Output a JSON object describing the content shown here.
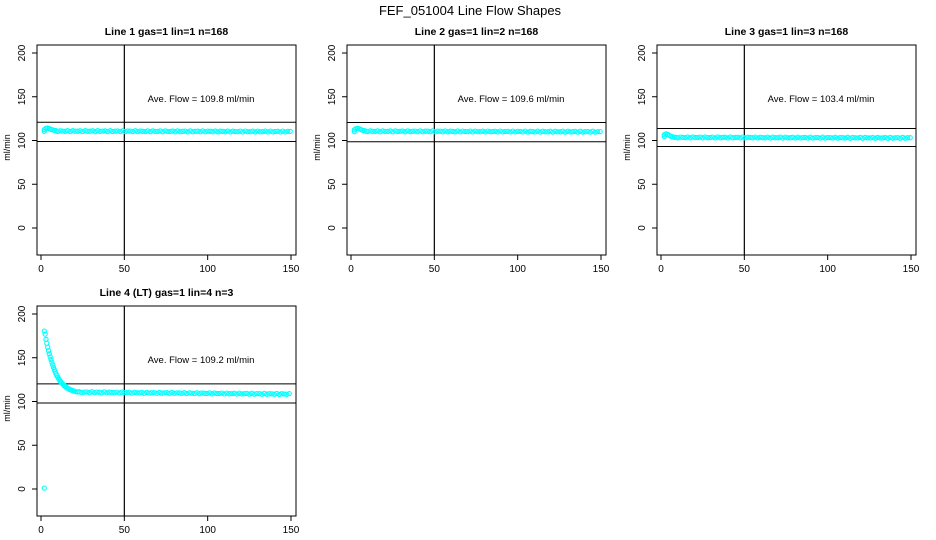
{
  "title": "FEF_051004  Line Flow Shapes",
  "colors": {
    "points": "#00ffff",
    "axis": "#000000",
    "background": "#ffffff",
    "text": "#000000"
  },
  "axes": {
    "x_ticks": [
      0,
      50,
      100,
      150
    ],
    "y_ticks": [
      0,
      50,
      100,
      150,
      200
    ],
    "y_label": "ml/min",
    "x_range": [
      0,
      150
    ],
    "y_range": [
      0,
      200
    ],
    "grid": false
  },
  "chart_data": [
    {
      "type": "scatter",
      "title": "Line 1 gas=1 lin=1 n=168",
      "line": 1,
      "gas": 1,
      "lin": 1,
      "n": 168,
      "ave_flow": "109.8",
      "annotation": "Ave. Flow =  109.8  ml/min",
      "ref_line_upper": 120.8,
      "ref_line_lower": 98.8,
      "ref_line_vertical_x": 50,
      "head_points": [
        [
          2,
          110.5
        ],
        [
          2,
          112.5
        ],
        [
          3,
          113.8
        ],
        [
          4,
          114.3
        ],
        [
          5,
          113.5
        ],
        [
          6,
          112.7
        ],
        [
          7,
          112.1
        ],
        [
          8,
          111.6
        ],
        [
          9,
          111.2
        ]
      ],
      "steady": {
        "x_start": 10,
        "x_end": 150,
        "x_step": 1.5,
        "y_start": 110.8,
        "y_end": 110.2
      },
      "outliers": []
    },
    {
      "type": "scatter",
      "title": "Line 2 gas=1 lin=2 n=168",
      "line": 2,
      "gas": 1,
      "lin": 2,
      "n": 168,
      "ave_flow": "109.6",
      "annotation": "Ave. Flow =  109.6  ml/min",
      "ref_line_upper": 120.6,
      "ref_line_lower": 98.6,
      "ref_line_vertical_x": 50,
      "head_points": [
        [
          2,
          110.2
        ],
        [
          2,
          112.2
        ],
        [
          3,
          113.4
        ],
        [
          4,
          113.9
        ],
        [
          5,
          113.2
        ],
        [
          6,
          112.4
        ],
        [
          7,
          111.7
        ],
        [
          8,
          111.2
        ],
        [
          9,
          110.8
        ]
      ],
      "steady": {
        "x_start": 10,
        "x_end": 150,
        "x_step": 1.5,
        "y_start": 110.6,
        "y_end": 110.0
      },
      "outliers": []
    },
    {
      "type": "scatter",
      "title": "Line 3 gas=1 lin=3 n=168",
      "line": 3,
      "gas": 1,
      "lin": 3,
      "n": 168,
      "ave_flow": "103.4",
      "annotation": "Ave. Flow =  103.4  ml/min",
      "ref_line_upper": 113.7,
      "ref_line_lower": 93.1,
      "ref_line_vertical_x": 50,
      "head_points": [
        [
          2,
          104.5
        ],
        [
          2,
          106.5
        ],
        [
          3,
          107.6
        ],
        [
          4,
          107.0
        ],
        [
          5,
          105.8
        ],
        [
          6,
          104.8
        ],
        [
          7,
          104.1
        ],
        [
          8,
          103.7
        ],
        [
          9,
          103.5
        ]
      ],
      "steady": {
        "x_start": 10,
        "x_end": 150,
        "x_step": 1.5,
        "y_start": 103.6,
        "y_end": 103.0
      },
      "outliers": []
    },
    {
      "type": "scatter",
      "title": "Line 4 (LT) gas=1 lin=4 n=3",
      "line": 4,
      "gas": 1,
      "lin": 4,
      "n": 3,
      "ave_flow": "109.2",
      "annotation": "Ave. Flow =  109.2  ml/min",
      "ref_line_upper": 120.1,
      "ref_line_lower": 98.3,
      "ref_line_vertical_x": 50,
      "head_points": [
        [
          2,
          180.5
        ],
        [
          2.5,
          177
        ],
        [
          3,
          171
        ],
        [
          3.5,
          166.5
        ],
        [
          4,
          162
        ],
        [
          4.5,
          158
        ],
        [
          5,
          154.5
        ],
        [
          5.5,
          151
        ],
        [
          6,
          148
        ],
        [
          6.5,
          145
        ],
        [
          7,
          142
        ],
        [
          7.5,
          139
        ],
        [
          8,
          136.5
        ],
        [
          8.5,
          134
        ],
        [
          9,
          131.8
        ],
        [
          9.5,
          129.8
        ],
        [
          10,
          128
        ],
        [
          10.5,
          126.3
        ],
        [
          11,
          124.8
        ],
        [
          11.5,
          123.4
        ],
        [
          12,
          122.1
        ],
        [
          12.5,
          121
        ],
        [
          13,
          120
        ],
        [
          13.5,
          119
        ],
        [
          14,
          118.1
        ],
        [
          14.5,
          117.3
        ],
        [
          15,
          116.5
        ],
        [
          15.5,
          115.8
        ],
        [
          16,
          115.2
        ],
        [
          16.5,
          114.6
        ],
        [
          17,
          114.1
        ],
        [
          17.5,
          113.6
        ],
        [
          18,
          113.2
        ],
        [
          18.5,
          112.8
        ],
        [
          19,
          112.4
        ],
        [
          19.5,
          112.1
        ],
        [
          20,
          111.8
        ],
        [
          21,
          111.3
        ],
        [
          22,
          110.9
        ]
      ],
      "steady": {
        "x_start": 23,
        "x_end": 150,
        "x_step": 1.5,
        "y_start": 110.7,
        "y_end": 108.5
      },
      "outliers": [
        [
          2,
          1
        ]
      ]
    }
  ]
}
